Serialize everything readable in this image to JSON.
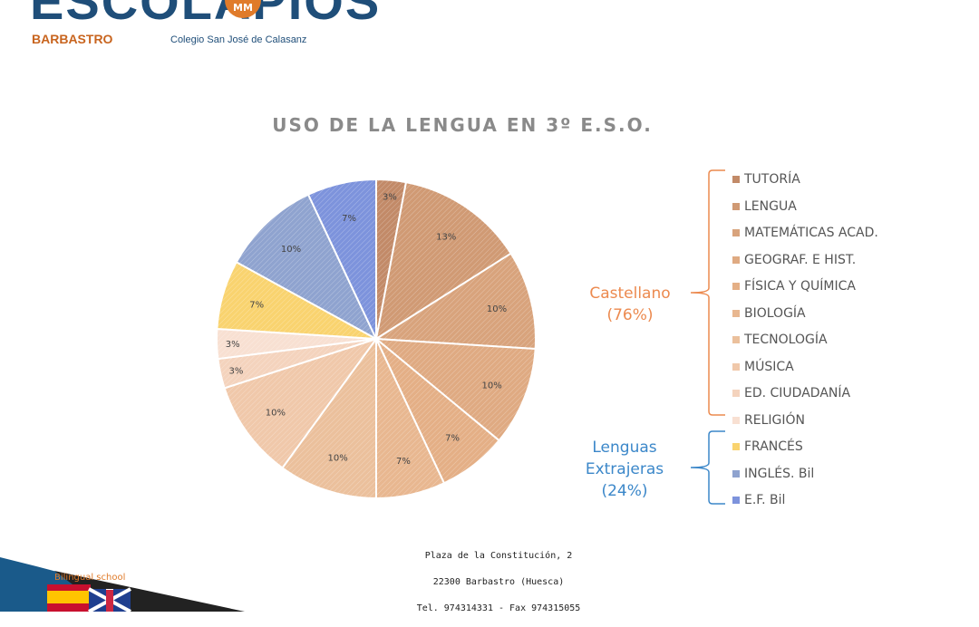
{
  "header": {
    "logo_word": "ESCOLAPIOS",
    "logo_badge": "MM",
    "city": "BARBASTRO",
    "school": "Colegio San José de Calasanz"
  },
  "chart_data": {
    "type": "pie",
    "title": "USO DE LA LENGUA EN 3º E.S.O.",
    "slices": [
      {
        "label": "TUTORÍA",
        "value": 3,
        "value_label": "3%",
        "color": "#c28a68",
        "group": "castellano"
      },
      {
        "label": "LENGUA",
        "value": 13,
        "value_label": "13%",
        "color": "#d09a74",
        "group": "castellano"
      },
      {
        "label": "MATEMÁTICAS ACAD.",
        "value": 10,
        "value_label": "10%",
        "color": "#d8a37c",
        "group": "castellano"
      },
      {
        "label": "GEOGRAF. E HIST.",
        "value": 10,
        "value_label": "10%",
        "color": "#dfaa82",
        "group": "castellano"
      },
      {
        "label": "FÍSICA Y QUÍMICA",
        "value": 7,
        "value_label": "7%",
        "color": "#e4af86",
        "group": "castellano"
      },
      {
        "label": "BIOLOGÍA",
        "value": 7,
        "value_label": "7%",
        "color": "#e8b790",
        "group": "castellano"
      },
      {
        "label": "TECNOLOGÍA",
        "value": 10,
        "value_label": "10%",
        "color": "#ebc09c",
        "group": "castellano"
      },
      {
        "label": "MÚSICA",
        "value": 10,
        "value_label": "10%",
        "color": "#f0c8aa",
        "group": "castellano"
      },
      {
        "label": "ED. CIUDADANÍA",
        "value": 3,
        "value_label": "3%",
        "color": "#f4d3bd",
        "group": "castellano"
      },
      {
        "label": "RELIGIÓN",
        "value": 3,
        "value_label": "3%",
        "color": "#f8e0d2",
        "group": "castellano"
      },
      {
        "label": "FRANCÉS",
        "value": 7,
        "value_label": "7%",
        "color": "#f9d36f",
        "group": "extranjeras"
      },
      {
        "label": "INGLÉS. Bil",
        "value": 10,
        "value_label": "10%",
        "color": "#8fa3cf",
        "group": "extranjeras"
      },
      {
        "label": "E.F. Bil",
        "value": 7,
        "value_label": "7%",
        "color": "#7d93dc",
        "group": "extranjeras"
      }
    ],
    "groups": [
      {
        "id": "castellano",
        "label_line1": "Castellano",
        "label_line2": "(76%)",
        "color": "#ec8a4f"
      },
      {
        "id": "extranjeras",
        "label_line1": "Lenguas",
        "label_line2": "Extrajeras",
        "label_line3": "(24%)",
        "color": "#3b87c9"
      }
    ],
    "legend_position": "right"
  },
  "footer": {
    "address": "Plaza de la Constitución, 2",
    "city": "22300 Barbastro (Huesca)",
    "phone": "Tel. 974314331  -  Fax 974315055"
  },
  "corner": {
    "tagline": "Bilingual school"
  }
}
